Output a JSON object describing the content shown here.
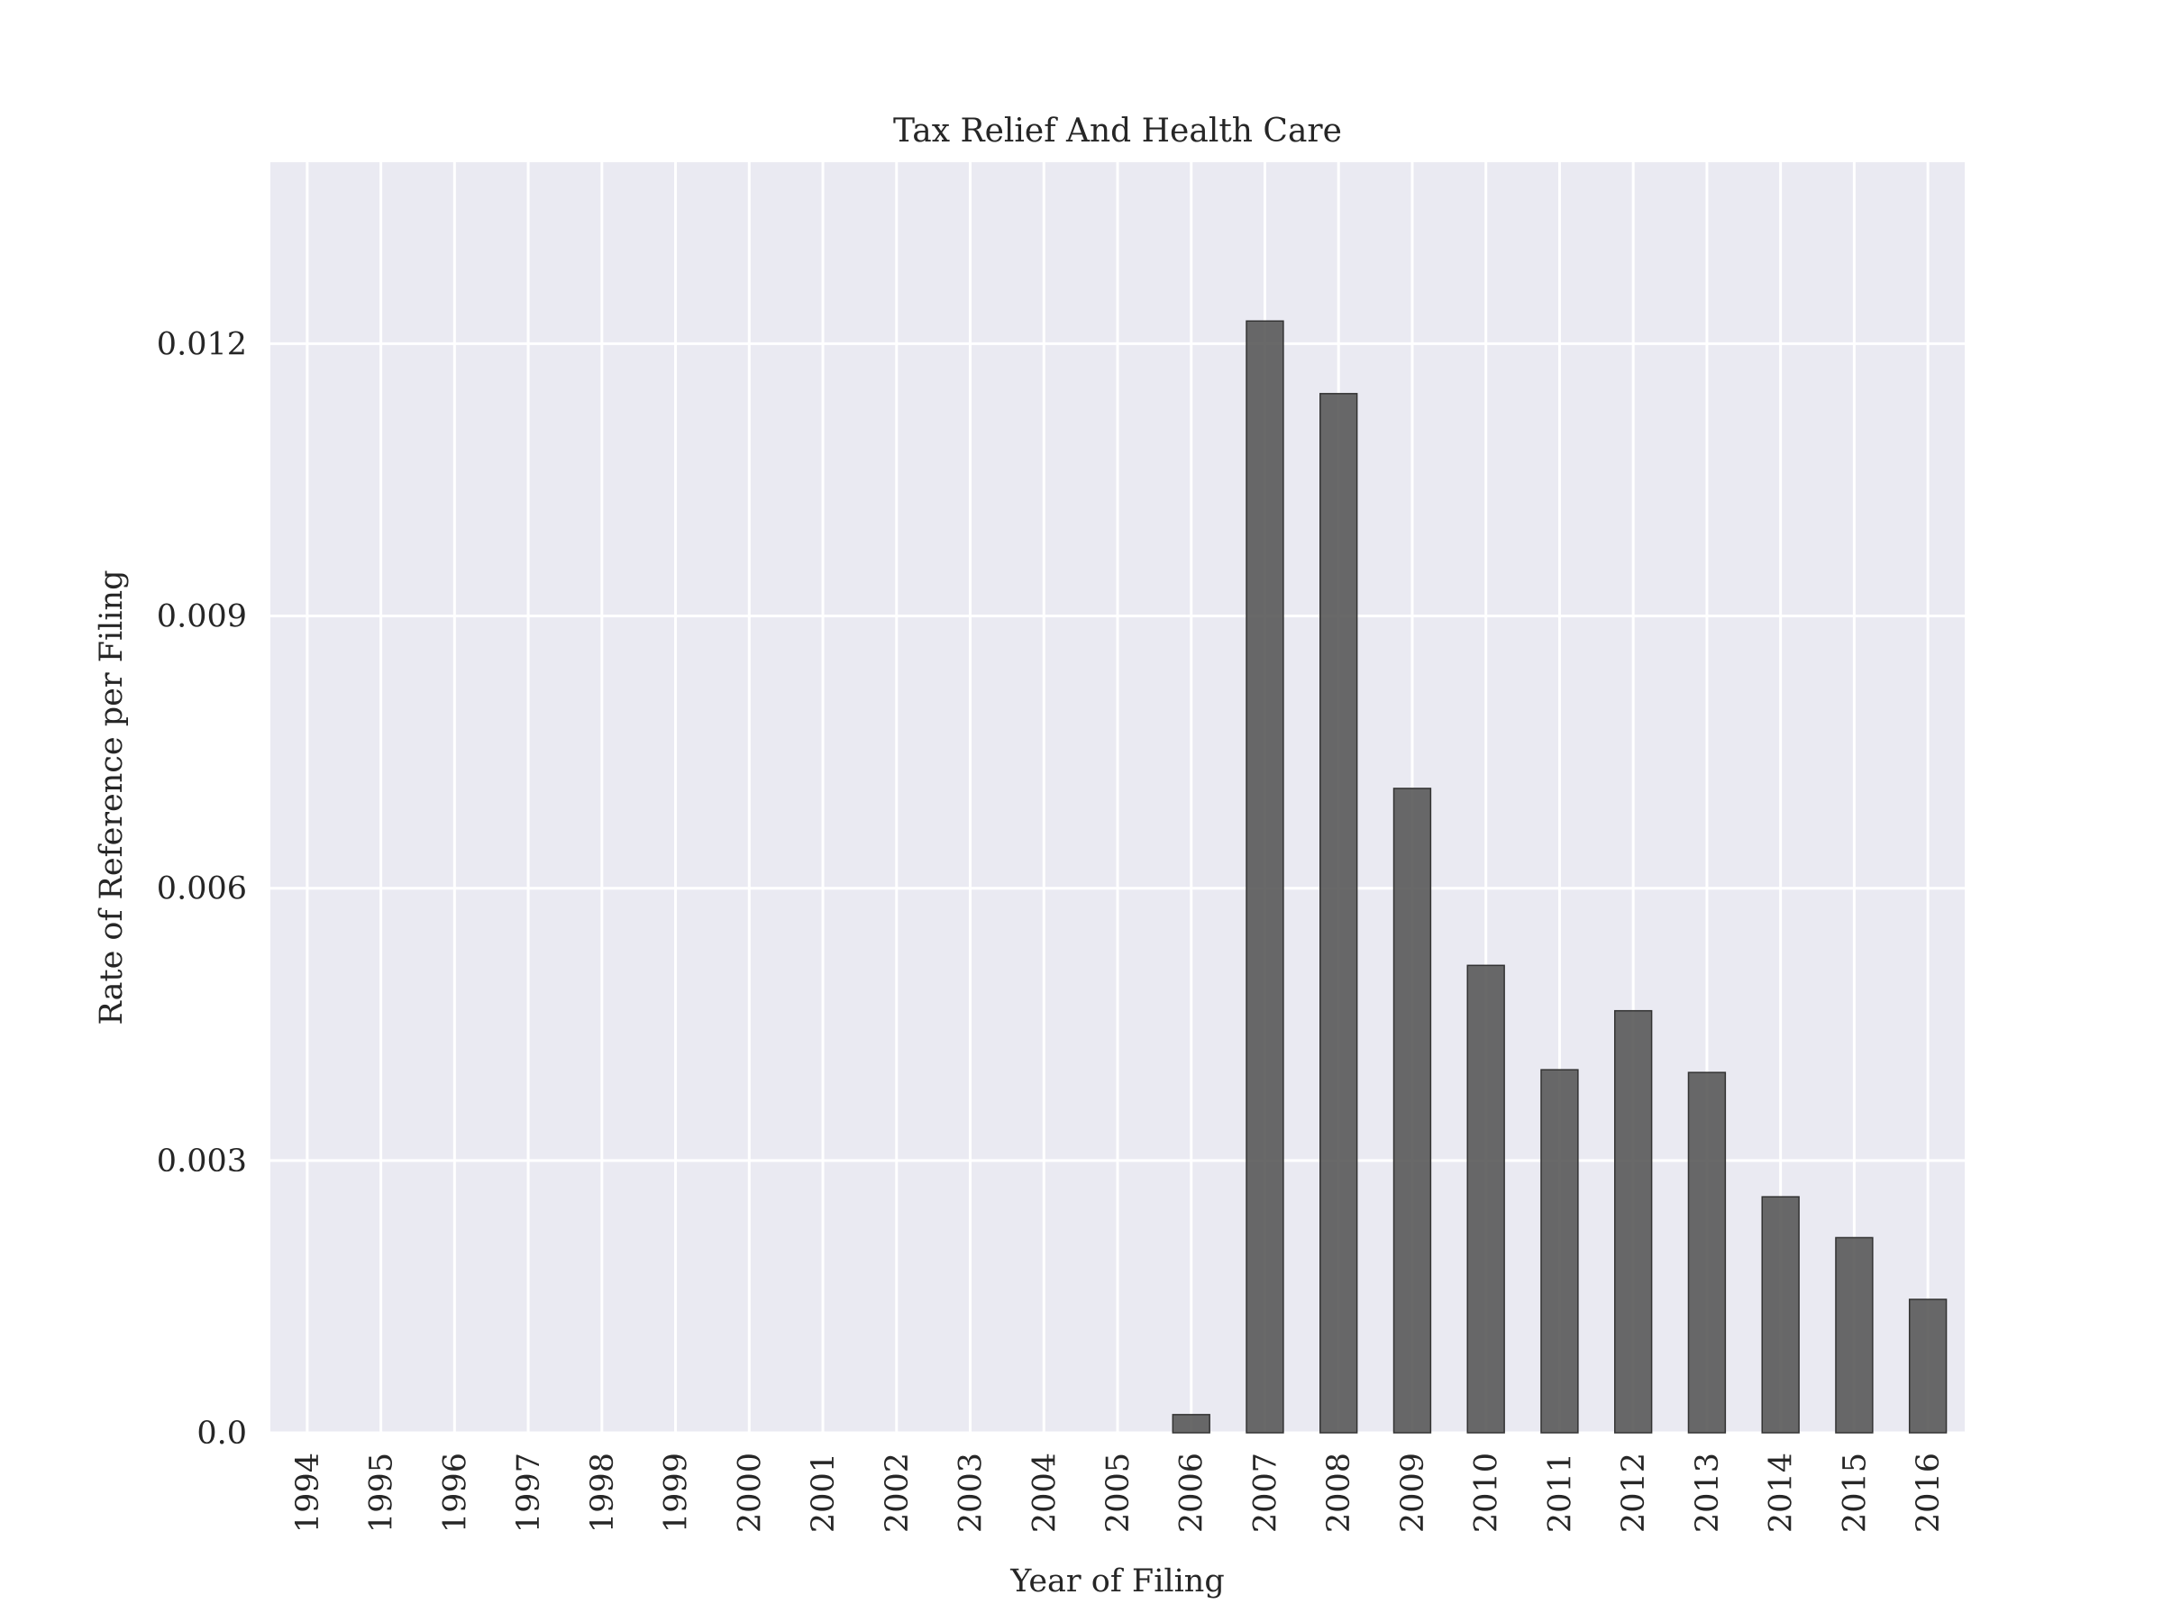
{
  "chart_data": {
    "type": "bar",
    "title": "Tax Relief And Health Care",
    "xlabel": "Year of Filing",
    "ylabel": "Rate of Reference per Filing",
    "categories": [
      "1994",
      "1995",
      "1996",
      "1997",
      "1998",
      "1999",
      "2000",
      "2001",
      "2002",
      "2003",
      "2004",
      "2005",
      "2006",
      "2007",
      "2008",
      "2009",
      "2010",
      "2011",
      "2012",
      "2013",
      "2014",
      "2015",
      "2016"
    ],
    "values": [
      0,
      0,
      0,
      0,
      0,
      0,
      0,
      0,
      0,
      0,
      0,
      0,
      0.0002,
      0.01225,
      0.01145,
      0.0071,
      0.00515,
      0.004,
      0.00465,
      0.00397,
      0.0026,
      0.00215,
      0.00147
    ],
    "ylim": [
      0,
      0.014
    ],
    "yticks": [
      0.0,
      0.003,
      0.006,
      0.009,
      0.012
    ],
    "ytick_labels": [
      "0.0",
      "0.003",
      "0.006",
      "0.009",
      "0.012"
    ],
    "grid": true,
    "legend": "none",
    "colors": {
      "bar_fill": "#595959",
      "bar_edge": "#333333",
      "plot_background": "#eaeaf2",
      "grid": "#ffffff"
    }
  }
}
